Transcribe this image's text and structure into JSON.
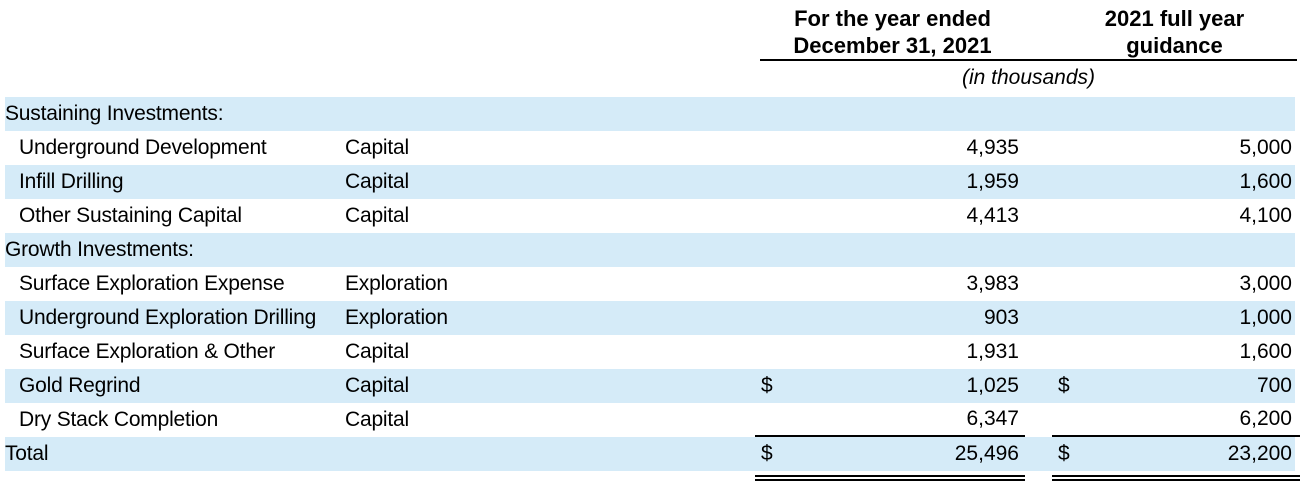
{
  "header": {
    "period_column": {
      "line1": "For the year ended",
      "line2": "December 31, 2021"
    },
    "guidance_column": {
      "line1": "2021 full year",
      "line2": "guidance"
    },
    "units_note": "(in thousands)"
  },
  "colors": {
    "row_band": "#d5ebf8",
    "text": "#000000",
    "rule": "#000000"
  },
  "rows": [
    {
      "label": "Sustaining Investments:",
      "type": "",
      "period_value": "",
      "guidance_value": ""
    },
    {
      "label": "Underground Development",
      "type": "Capital",
      "period_value": "4,935",
      "guidance_value": "5,000"
    },
    {
      "label": "Infill Drilling",
      "type": "Capital",
      "period_value": "1,959",
      "guidance_value": "1,600"
    },
    {
      "label": "Other Sustaining Capital",
      "type": "Capital",
      "period_value": "4,413",
      "guidance_value": "4,100"
    },
    {
      "label": "Growth Investments:",
      "type": "",
      "period_value": "",
      "guidance_value": ""
    },
    {
      "label": "Surface Exploration Expense",
      "type": "Exploration",
      "period_value": "3,983",
      "guidance_value": "3,000"
    },
    {
      "label": "Underground Exploration Drilling",
      "type": "Exploration",
      "period_value": "903",
      "guidance_value": "1,000"
    },
    {
      "label": "Surface Exploration & Other",
      "type": "Capital",
      "period_value": "1,931",
      "guidance_value": "1,600"
    },
    {
      "label": "Gold Regrind",
      "type": "Capital",
      "period_dollar": "$",
      "period_value": "1,025",
      "guidance_dollar": "$",
      "guidance_value": "700"
    },
    {
      "label": "Dry Stack Completion",
      "type": "Capital",
      "period_value": "6,347",
      "guidance_value": "6,200"
    },
    {
      "label": "Total",
      "type": "",
      "period_dollar": "$",
      "period_value": "25,496",
      "guidance_dollar": "$",
      "guidance_value": "23,200"
    }
  ]
}
